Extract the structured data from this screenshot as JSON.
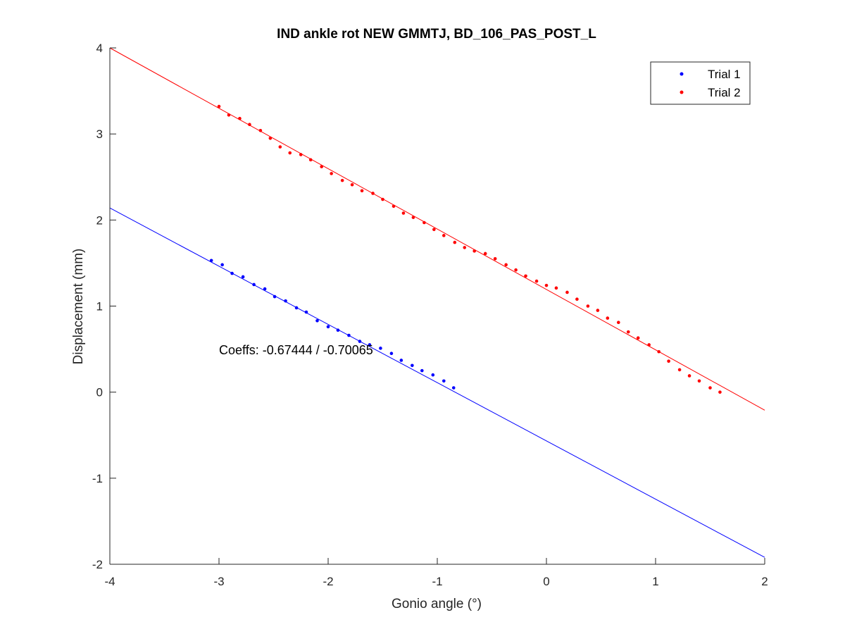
{
  "chart_data": {
    "type": "scatter",
    "title": "IND ankle rot NEW GMMTJ, BD_106_PAS_POST_L",
    "xlabel": "Gonio angle (°)",
    "ylabel": "Displacement (mm)",
    "xlim": [
      -4,
      2
    ],
    "ylim": [
      -2,
      4
    ],
    "xticks": [
      -4,
      -3,
      -2,
      -1,
      0,
      1,
      2
    ],
    "yticks": [
      -2,
      -1,
      0,
      1,
      2,
      3,
      4
    ],
    "grid": false,
    "legend_position": "top-right",
    "annotation": "Coeffs: -0.67444 / -0.70065",
    "series": [
      {
        "name": "Trial 1",
        "color": "#0000ff",
        "x": [
          -3.07,
          -2.97,
          -2.88,
          -2.78,
          -2.68,
          -2.58,
          -2.49,
          -2.39,
          -2.29,
          -2.2,
          -2.1,
          -2.0,
          -1.91,
          -1.81,
          -1.71,
          -1.62,
          -1.52,
          -1.42,
          -1.33,
          -1.23,
          -1.14,
          -1.04,
          -0.94,
          -0.85
        ],
        "y": [
          1.53,
          1.48,
          1.38,
          1.34,
          1.25,
          1.2,
          1.11,
          1.06,
          0.98,
          0.93,
          0.83,
          0.76,
          0.72,
          0.66,
          0.59,
          0.55,
          0.51,
          0.45,
          0.37,
          0.31,
          0.25,
          0.2,
          0.13,
          0.05
        ]
      },
      {
        "name": "Trial 2",
        "color": "#ff0000",
        "x": [
          -3.0,
          -2.91,
          -2.81,
          -2.72,
          -2.62,
          -2.53,
          -2.44,
          -2.35,
          -2.25,
          -2.16,
          -2.06,
          -1.97,
          -1.87,
          -1.78,
          -1.69,
          -1.59,
          -1.5,
          -1.4,
          -1.31,
          -1.22,
          -1.12,
          -1.03,
          -0.94,
          -0.84,
          -0.75,
          -0.66,
          -0.56,
          -0.47,
          -0.37,
          -0.28,
          -0.19,
          -0.09,
          0.0,
          0.09,
          0.19,
          0.28,
          0.38,
          0.47,
          0.56,
          0.66,
          0.75,
          0.84,
          0.94,
          1.03,
          1.12,
          1.22,
          1.31,
          1.4,
          1.5,
          1.59
        ],
        "y": [
          3.32,
          3.22,
          3.18,
          3.11,
          3.04,
          2.95,
          2.85,
          2.78,
          2.76,
          2.7,
          2.62,
          2.54,
          2.46,
          2.41,
          2.34,
          2.31,
          2.24,
          2.16,
          2.08,
          2.03,
          1.97,
          1.89,
          1.82,
          1.74,
          1.68,
          1.64,
          1.61,
          1.55,
          1.48,
          1.42,
          1.35,
          1.29,
          1.24,
          1.21,
          1.16,
          1.08,
          1.0,
          0.95,
          0.86,
          0.81,
          0.7,
          0.63,
          0.55,
          0.47,
          0.36,
          0.26,
          0.19,
          0.13,
          0.05,
          0.0
        ]
      }
    ],
    "fit_lines": [
      {
        "series": "Trial 1",
        "color": "#0000ff",
        "x": [
          -4,
          2
        ],
        "y": [
          2.14,
          -1.92
        ]
      },
      {
        "series": "Trial 2",
        "color": "#ff0000",
        "x": [
          -4,
          2
        ],
        "y": [
          4.0,
          -0.21
        ]
      }
    ]
  }
}
